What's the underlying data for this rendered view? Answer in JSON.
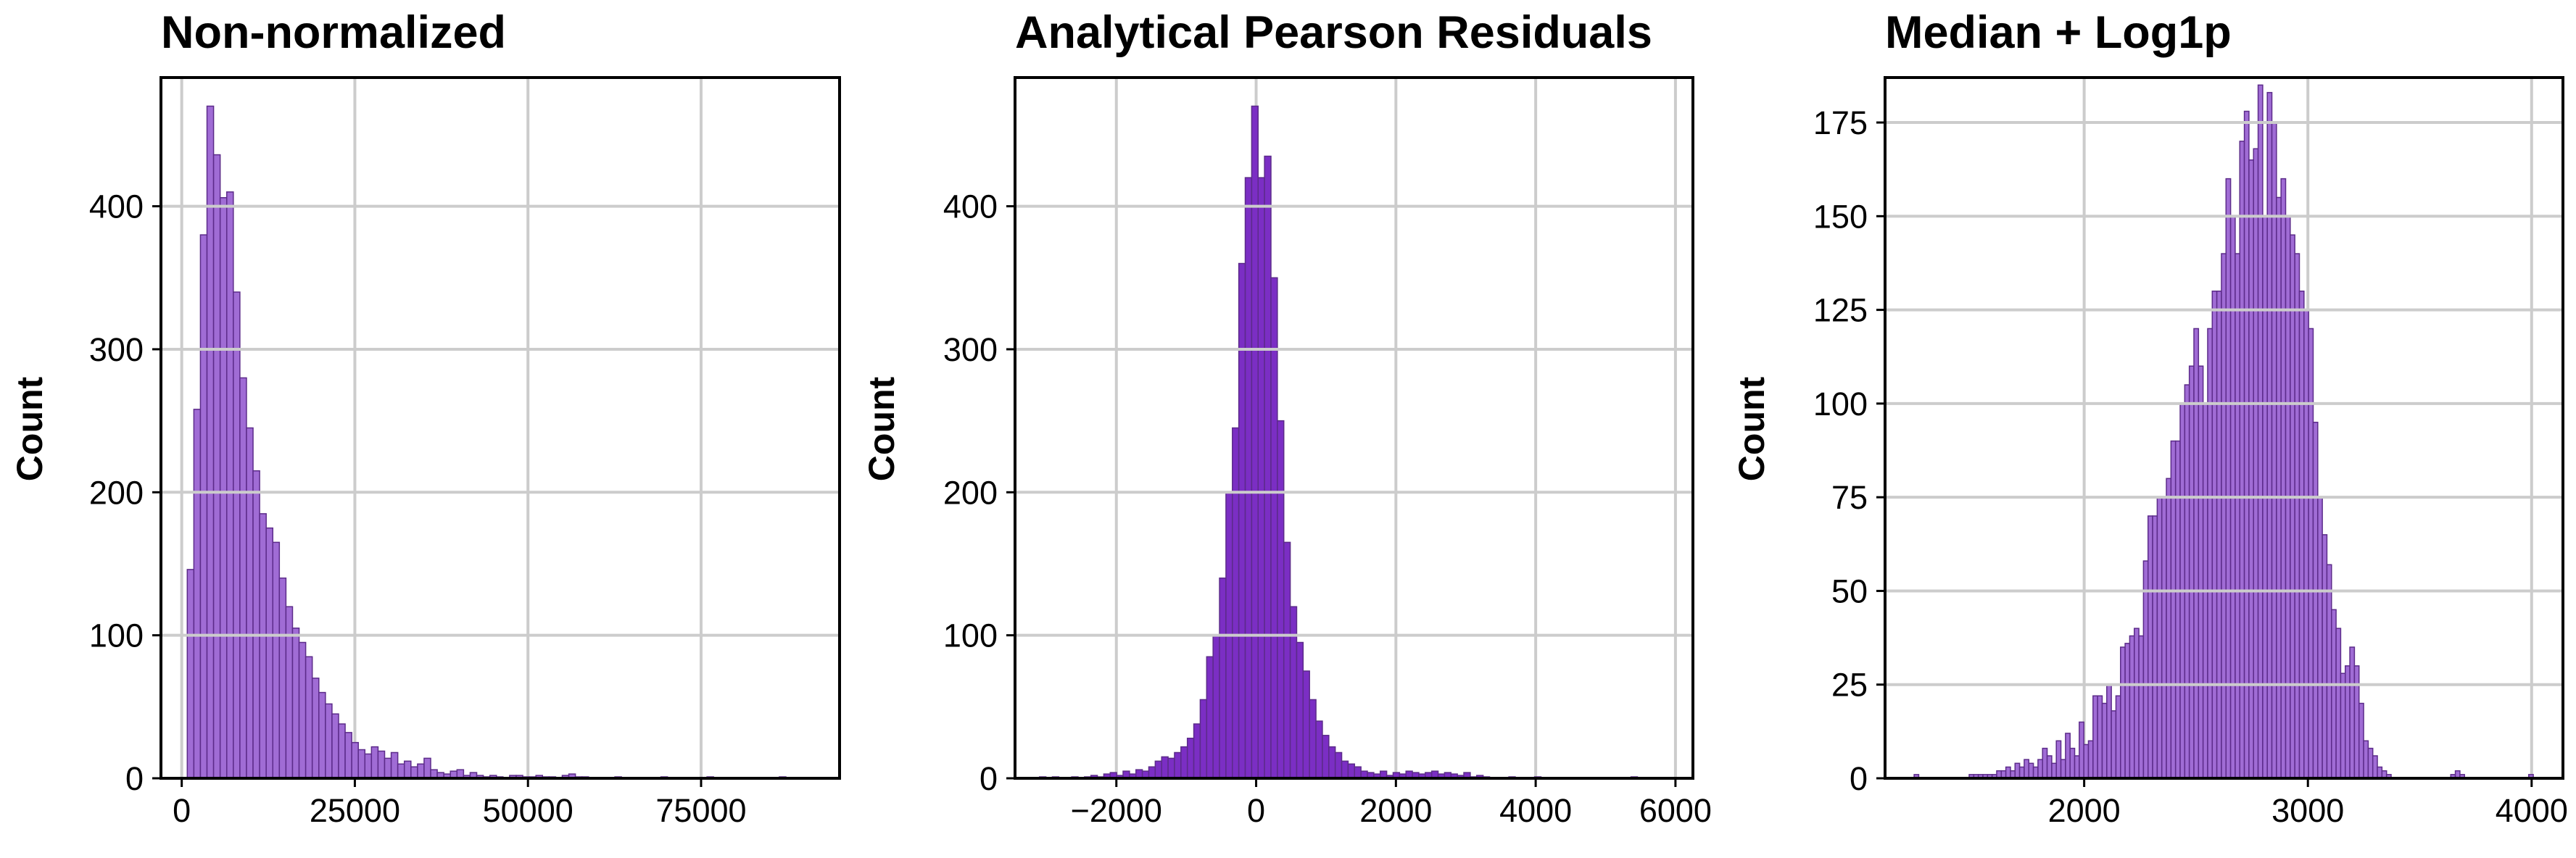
{
  "chart_data": [
    {
      "type": "bar",
      "title": "Non-normalized",
      "ylabel": "Count",
      "xlim": [
        -3000,
        95000
      ],
      "ylim": [
        0,
        490
      ],
      "xticks": [
        0,
        25000,
        50000,
        75000
      ],
      "xtick_labels": [
        "0",
        "25000",
        "50000",
        "75000"
      ],
      "yticks": [
        0,
        100,
        200,
        300,
        400
      ],
      "ytick_labels": [
        "0",
        "100",
        "200",
        "300",
        "400"
      ],
      "grid": true,
      "bar_color": "#a06cd5",
      "bin_start": 800,
      "bin_width": 950,
      "counts": [
        146,
        258,
        380,
        470,
        436,
        406,
        410,
        340,
        280,
        245,
        215,
        185,
        175,
        165,
        140,
        120,
        105,
        95,
        85,
        70,
        60,
        52,
        45,
        38,
        32,
        25,
        20,
        17,
        22,
        19,
        14,
        18,
        10,
        12,
        8,
        10,
        14,
        6,
        4,
        3,
        5,
        6,
        2,
        4,
        2,
        1,
        2,
        1,
        0,
        2,
        2,
        1,
        1,
        2,
        1,
        1,
        0,
        2,
        3,
        1,
        1,
        0,
        0,
        0,
        0,
        1,
        0,
        0,
        0,
        0,
        0,
        0,
        1,
        0,
        0,
        0,
        0,
        0,
        0,
        1,
        0,
        0,
        0,
        0,
        0,
        0,
        0,
        0,
        0,
        0,
        1,
        0,
        0,
        0,
        0,
        0,
        0,
        0
      ]
    },
    {
      "type": "bar",
      "title": "Analytical Pearson Residuals",
      "ylabel": "Count",
      "xlim": [
        -3450,
        6250
      ],
      "ylim": [
        0,
        490
      ],
      "xticks": [
        -2000,
        0,
        2000,
        4000,
        6000
      ],
      "xtick_labels": [
        "−2000",
        "0",
        "2000",
        "4000",
        "6000"
      ],
      "yticks": [
        0,
        100,
        200,
        300,
        400
      ],
      "ytick_labels": [
        "0",
        "100",
        "200",
        "300",
        "400"
      ],
      "grid": true,
      "bar_color": "#7b2ec4",
      "bin_start": -3100,
      "bin_width": 92,
      "counts": [
        1,
        0,
        1,
        0,
        0,
        1,
        0,
        1,
        2,
        1,
        3,
        4,
        2,
        5,
        3,
        6,
        5,
        8,
        12,
        15,
        14,
        18,
        22,
        28,
        38,
        55,
        85,
        100,
        140,
        200,
        245,
        360,
        420,
        470,
        420,
        435,
        350,
        250,
        165,
        120,
        95,
        75,
        55,
        40,
        30,
        22,
        18,
        12,
        10,
        8,
        5,
        4,
        3,
        5,
        2,
        4,
        3,
        5,
        4,
        3,
        4,
        5,
        3,
        4,
        3,
        2,
        4,
        1,
        2,
        1,
        0,
        0,
        0,
        1,
        0,
        0,
        0,
        1,
        0,
        0,
        0,
        0,
        0,
        0,
        0,
        0,
        0,
        0,
        0,
        0,
        0,
        0,
        1
      ]
    },
    {
      "type": "bar",
      "title": "Median + Log1p",
      "ylabel": "Count",
      "xlim": [
        1110,
        4140
      ],
      "ylim": [
        0,
        187
      ],
      "xticks": [
        2000,
        3000,
        4000
      ],
      "xtick_labels": [
        "2000",
        "3000",
        "4000"
      ],
      "yticks": [
        0,
        25,
        50,
        75,
        100,
        125,
        150,
        175
      ],
      "ytick_labels": [
        "0",
        "25",
        "50",
        "75",
        "100",
        "125",
        "150",
        "175"
      ],
      "grid": true,
      "bar_color": "#a06cd5",
      "bin_start": 1240,
      "bin_width": 20.5,
      "counts": [
        1,
        0,
        0,
        0,
        0,
        0,
        0,
        0,
        0,
        0,
        0,
        0,
        1,
        1,
        1,
        1,
        1,
        1,
        2,
        2,
        3,
        2,
        4,
        3,
        5,
        4,
        3,
        5,
        8,
        6,
        4,
        10,
        5,
        12,
        8,
        6,
        15,
        9,
        10,
        22,
        22,
        20,
        25,
        18,
        22,
        35,
        36,
        38,
        40,
        38,
        58,
        70,
        70,
        75,
        75,
        80,
        90,
        90,
        100,
        105,
        110,
        120,
        110,
        100,
        120,
        130,
        130,
        140,
        160,
        150,
        140,
        170,
        178,
        165,
        168,
        185,
        150,
        183,
        175,
        155,
        160,
        150,
        145,
        140,
        130,
        125,
        120,
        95,
        75,
        65,
        57,
        45,
        40,
        28,
        30,
        35,
        30,
        20,
        10,
        8,
        6,
        3,
        2,
        1,
        0,
        0,
        0,
        0,
        0,
        0,
        0,
        0,
        0,
        0,
        0,
        0,
        0,
        1,
        2,
        1,
        0,
        0,
        0,
        0,
        0,
        0,
        0,
        0,
        0,
        0,
        0,
        0,
        0,
        0,
        1
      ]
    }
  ]
}
